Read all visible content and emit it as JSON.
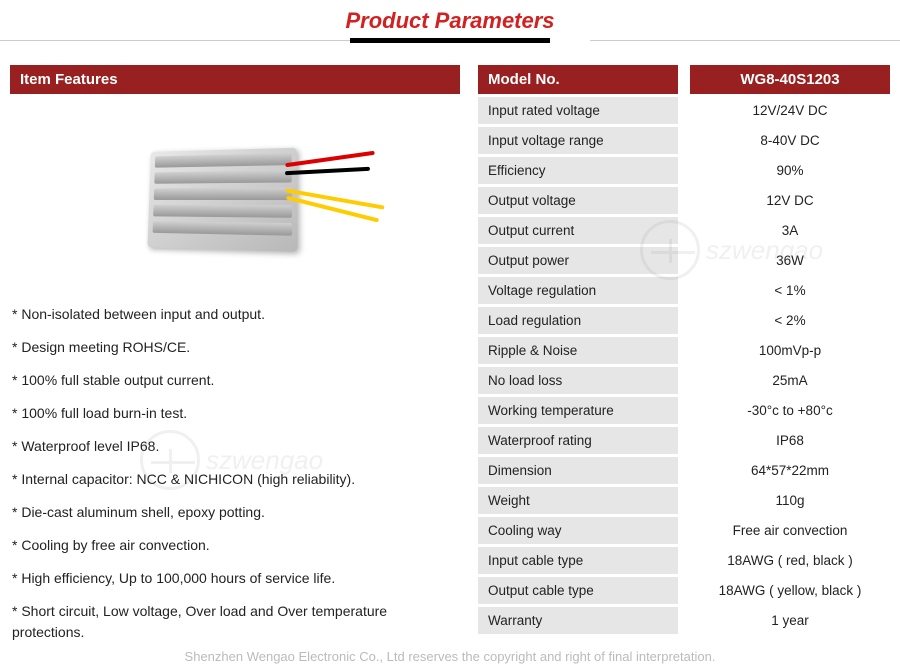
{
  "header": {
    "title": "Product Parameters"
  },
  "features": {
    "header": "Item Features",
    "items": [
      "* Non-isolated between input and output.",
      "* Design meeting ROHS/CE.",
      "* 100% full stable output current.",
      "* 100% full load burn-in test.",
      "* Waterproof level IP68.",
      "* Internal capacitor: NCC & NICHICON (high reliability).",
      "* Die-cast aluminum shell, epoxy potting.",
      "* Cooling by free air convection.",
      "* High efficiency, Up to 100,000 hours of service life.",
      "* Short circuit, Low voltage, Over load and Over temperature protections."
    ]
  },
  "specs": {
    "header_label": "Model No.",
    "header_value": "WG8-40S1203",
    "rows": [
      {
        "label": "Input rated voltage",
        "value": "12V/24V DC"
      },
      {
        "label": "Input voltage range",
        "value": "8-40V DC"
      },
      {
        "label": "Efficiency",
        "value": "90%"
      },
      {
        "label": "Output voltage",
        "value": "12V DC"
      },
      {
        "label": "Output current",
        "value": "3A"
      },
      {
        "label": "Output power",
        "value": "36W"
      },
      {
        "label": "Voltage regulation",
        "value": "< 1%"
      },
      {
        "label": "Load regulation",
        "value": "< 2%"
      },
      {
        "label": "Ripple & Noise",
        "value": "100mVp-p"
      },
      {
        "label": "No load loss",
        "value": "25mA"
      },
      {
        "label": "Working temperature",
        "value": "-30°c to +80°c"
      },
      {
        "label": "Waterproof rating",
        "value": "IP68"
      },
      {
        "label": "Dimension",
        "value": "64*57*22mm"
      },
      {
        "label": "Weight",
        "value": "110g"
      },
      {
        "label": "Cooling way",
        "value": "Free air convection"
      },
      {
        "label": "Input cable type",
        "value": "18AWG ( red, black )"
      },
      {
        "label": "Output cable type",
        "value": "18AWG ( yellow, black )"
      },
      {
        "label": "Warranty",
        "value": "1 year"
      }
    ]
  },
  "watermark": {
    "text": "szwengao"
  },
  "footer": {
    "text": "Shenzhen Wengao Electronic Co., Ltd reserves the copyright and right of final interpretation."
  },
  "colors": {
    "brand_red": "#992020",
    "title_red": "#d32020",
    "row_gray": "#e6e6e6"
  }
}
